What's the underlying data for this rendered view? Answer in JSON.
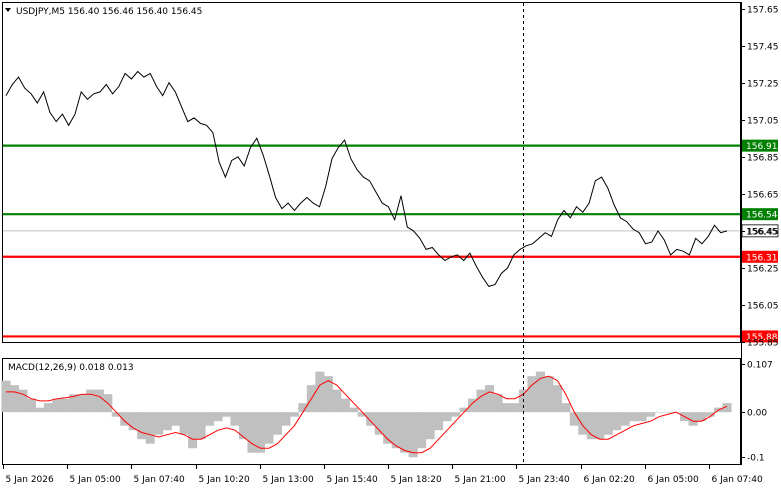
{
  "header": {
    "menu_icon": "triangle-down-icon",
    "title": "USDJPY,M5  156.40 156.46 156.40 156.45"
  },
  "colors": {
    "price_line": "#000000",
    "support_line": "#ff0000",
    "resistance_line": "#008000",
    "histogram": "#c0c0c0",
    "signal_line": "#ff0000",
    "current_price_line": "#c0c0c0"
  },
  "chart_data": [
    {
      "type": "line",
      "symbol": "USDJPY",
      "timeframe": "M5",
      "ylim": [
        155.85,
        157.68
      ],
      "y_ticks": [
        "157.65",
        "157.45",
        "157.25",
        "157.05",
        "156.85",
        "156.65",
        "156.45",
        "156.25",
        "156.05",
        "155.85"
      ],
      "x_ticks": [
        "5 Jan 2026",
        "5 Jan 05:00",
        "5 Jan 07:40",
        "5 Jan 10:20",
        "5 Jan 13:00",
        "5 Jan 15:40",
        "5 Jan 18:20",
        "5 Jan 21:00",
        "5 Jan 23:40",
        "6 Jan 02:20",
        "6 Jan 05:00",
        "6 Jan 07:40"
      ],
      "current_price": 156.45,
      "horizontal_lines": [
        {
          "value": 156.91,
          "label": "156.91",
          "color": "#008000"
        },
        {
          "value": 156.54,
          "label": "156.54",
          "color": "#008000"
        },
        {
          "value": 156.31,
          "label": "156.31",
          "color": "#ff0000"
        },
        {
          "value": 155.88,
          "label": "155.88",
          "color": "#ff0000"
        }
      ],
      "series": [
        {
          "values": [
            157.18,
            157.24,
            157.28,
            157.22,
            157.19,
            157.14,
            157.2,
            157.09,
            157.04,
            157.08,
            157.02,
            157.08,
            157.2,
            157.16,
            157.19,
            157.2,
            157.24,
            157.19,
            157.23,
            157.3,
            157.27,
            157.31,
            157.28,
            157.3,
            157.23,
            157.18,
            157.25,
            157.2,
            157.12,
            157.04,
            157.06,
            157.03,
            157.02,
            156.98,
            156.82,
            156.74,
            156.83,
            156.85,
            156.8,
            156.9,
            156.95,
            156.86,
            156.75,
            156.63,
            156.57,
            156.6,
            156.56,
            156.6,
            156.63,
            156.6,
            156.58,
            156.69,
            156.84,
            156.9,
            156.94,
            156.84,
            156.78,
            156.74,
            156.72,
            156.66,
            156.6,
            156.58,
            156.51,
            156.64,
            156.47,
            156.45,
            156.41,
            156.35,
            156.36,
            156.32,
            156.29,
            156.31,
            156.32,
            156.29,
            156.33,
            156.26,
            156.2,
            156.15,
            156.16,
            156.22,
            156.25,
            156.32,
            156.35,
            156.37,
            156.38,
            156.41,
            156.44,
            156.42,
            156.51,
            156.56,
            156.52,
            156.58,
            156.55,
            156.6,
            156.72,
            156.74,
            156.68,
            156.59,
            156.52,
            156.5,
            156.46,
            156.44,
            156.38,
            156.39,
            156.45,
            156.4,
            156.32,
            156.35,
            156.34,
            156.32,
            156.41,
            156.38,
            156.42,
            156.48,
            156.44,
            156.45
          ]
        }
      ]
    },
    {
      "type": "bar",
      "indicator": "MACD(12,26,9)",
      "title": "MACD(12,26,9) 0.018 0.013",
      "ylim": [
        -0.115,
        0.118
      ],
      "y_ticks": [
        "0.107",
        "0.00",
        "-0.1"
      ],
      "main_value": 0.018,
      "signal_value": 0.013,
      "histogram": [
        0.07,
        0.06,
        0.05,
        0.03,
        0.01,
        0.02,
        0.03,
        0.03,
        0.04,
        0.04,
        0.05,
        0.05,
        0.04,
        -0.01,
        -0.03,
        -0.04,
        -0.06,
        -0.07,
        -0.05,
        -0.04,
        -0.03,
        -0.05,
        -0.08,
        -0.06,
        -0.03,
        -0.02,
        -0.01,
        -0.03,
        -0.06,
        -0.09,
        -0.09,
        -0.07,
        -0.05,
        -0.03,
        -0.01,
        0.02,
        0.06,
        0.09,
        0.08,
        0.05,
        0.03,
        0.01,
        -0.01,
        -0.03,
        -0.05,
        -0.07,
        -0.08,
        -0.09,
        -0.1,
        -0.08,
        -0.06,
        -0.04,
        -0.02,
        -0.01,
        0.01,
        0.03,
        0.05,
        0.06,
        0.04,
        0.02,
        0.02,
        0.05,
        0.08,
        0.09,
        0.08,
        0.06,
        0.02,
        -0.03,
        -0.05,
        -0.06,
        -0.06,
        -0.05,
        -0.04,
        -0.03,
        -0.02,
        -0.02,
        -0.01,
        0.0,
        0.0,
        0.0,
        -0.02,
        -0.03,
        -0.02,
        -0.01,
        0.01,
        0.02
      ],
      "signal": [
        0.045,
        0.045,
        0.04,
        0.03,
        0.025,
        0.025,
        0.03,
        0.032,
        0.035,
        0.04,
        0.04,
        0.035,
        0.02,
        0.0,
        -0.02,
        -0.035,
        -0.045,
        -0.05,
        -0.055,
        -0.05,
        -0.045,
        -0.05,
        -0.06,
        -0.06,
        -0.05,
        -0.04,
        -0.035,
        -0.04,
        -0.055,
        -0.07,
        -0.08,
        -0.08,
        -0.07,
        -0.05,
        -0.03,
        0.0,
        0.03,
        0.06,
        0.07,
        0.06,
        0.04,
        0.02,
        0.0,
        -0.02,
        -0.04,
        -0.06,
        -0.075,
        -0.085,
        -0.09,
        -0.09,
        -0.08,
        -0.06,
        -0.04,
        -0.02,
        0.0,
        0.02,
        0.035,
        0.045,
        0.04,
        0.03,
        0.03,
        0.04,
        0.06,
        0.075,
        0.08,
        0.07,
        0.04,
        0.0,
        -0.03,
        -0.05,
        -0.06,
        -0.06,
        -0.05,
        -0.04,
        -0.03,
        -0.025,
        -0.02,
        -0.01,
        -0.005,
        0.0,
        -0.01,
        -0.02,
        -0.02,
        -0.01,
        0.005,
        0.013
      ]
    }
  ]
}
